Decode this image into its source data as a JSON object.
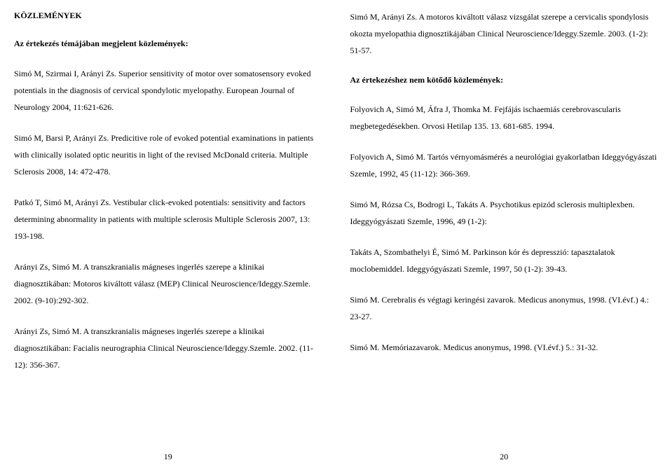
{
  "left": {
    "heading": "KÖZLEMÉNYEK",
    "subheading": "Az értekezés témájában megjelent közlemények:",
    "entries": [
      "Simó M, Szirmai I, Arányi Zs. Superior sensitivity of motor over somatosensory evoked potentials in the diagnosis of cervical spondylotic myelopathy. European Journal of Neurology 2004, 11:621-626.",
      "Simó M, Barsi P, Arányi Zs. Predicitive role of evoked potential examinations in patients with clinically isolated optic neuritis in light of the revised McDonald criteria. Multiple Sclerosis 2008, 14: 472-478.",
      "Patkó T, Simó M, Arányi Zs. Vestibular click-evoked potentials: sensitivity and factors determining abnormality in patients with multiple sclerosis Multiple Sclerosis 2007, 13: 193-198.",
      "Arányi Zs, Simó M. A transzkranialis mágneses ingerlés szerepe a klinikai diagnosztikában: Motoros kiváltott válasz (MEP) Clinical Neuroscience/Ideggy.Szemle. 2002. (9-10):292-302.",
      "Arányi Zs, Simó M. A transzkranialis mágneses ingerlés szerepe a klinikai diagnosztikában: Facialis neurographia Clinical Neuroscience/Ideggy.Szemle. 2002. (11-12): 356-367."
    ],
    "pagenum": "19"
  },
  "right": {
    "topentry": "Simó M, Arányi Zs. A motoros kiváltott válasz vizsgálat szerepe a cervicalis spondylosis okozta myelopathia dignosztikájában Clinical Neuroscience/Ideggy.Szemle. 2003. (1-2): 51-57.",
    "subheading": "Az értekezéshez nem kötődő közlemények:",
    "entries": [
      "Folyovich A, Simó M, Áfra J, Thomka M. Fejfájás ischaemiás cerebrovascularis megbetegedésekben. Orvosi Hetilap 135. 13. 681-685. 1994.",
      "Folyovich A, Simó M. Tartós vérnyomásmérés a neurológiai gyakorlatban Ideggyógyászati Szemle, 1992, 45 (11-12): 366-369.",
      "Simó M, Rózsa Cs, Bodrogi L, Takáts A. Psychotikus epizód sclerosis multiplexben. Ideggyógyászati Szemle, 1996, 49 (1-2):",
      "Takáts A, Szombathelyi É, Simó M. Parkinson kór és depresszió: tapasztalatok moclobemiddel. Ideggyógyászati Szemle, 1997, 50 (1-2): 39-43.",
      "Simó M. Cerebralis és végtagi keringési zavarok. Medicus anonymus, 1998. (VI.évf.) 4.: 23-27.",
      "Simó M. Memóriazavarok. Medicus anonymus, 1998. (VI.évf.) 5.: 31-32."
    ],
    "pagenum": "20"
  }
}
